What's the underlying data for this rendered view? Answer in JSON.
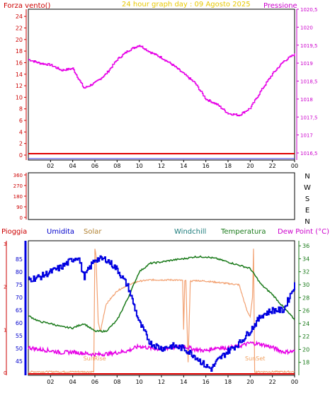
{
  "header": {
    "left_label": "Forza vento()",
    "title": "24 hour graph day : 09 Agosto 2025",
    "right_label": "Pressione"
  },
  "middle_panel": {
    "directions": [
      "N",
      "W",
      "S",
      "E",
      "N"
    ],
    "degree_ticks": [
      "360",
      "270",
      "180",
      "90",
      "0"
    ]
  },
  "bottom_header": {
    "pioggia": "Pioggia",
    "umidita": "Umidita",
    "solar": "Solar",
    "windchill": "Windchill",
    "temperatura": "Temperatura",
    "dew_point": "Dew Point (°C)"
  },
  "annotations": {
    "sunrise": "SunRise",
    "sunset": "SunSet"
  },
  "colors": {
    "pressure": "#e600e6",
    "humidity": "#0000e0",
    "temperature": "#1a7a1a",
    "solar": "#f2a070",
    "dew_point": "#e600e6",
    "rain": "#e00000",
    "wind_baseline": "#e00000",
    "panel_frame": "#000000",
    "left_axis_text": "#cc0000",
    "right_axis_text": "#cc00cc",
    "title_text": "#e8c800"
  },
  "chart_data": [
    {
      "type": "line",
      "panel": "top",
      "x_ticks": [
        "02",
        "04",
        "06",
        "08",
        "10",
        "12",
        "14",
        "16",
        "18",
        "20",
        "22",
        "00"
      ],
      "left_axis": {
        "label": "Forza vento()",
        "range": [
          0,
          25
        ],
        "ticks": [
          "0",
          "2",
          "4",
          "6",
          "8",
          "10",
          "12",
          "14",
          "16",
          "18",
          "20",
          "22",
          "24"
        ]
      },
      "right_axis": {
        "label": "Pressione",
        "range": [
          1016.5,
          1020.5
        ],
        "ticks": [
          "1016,5",
          "1017",
          "1017,5",
          "1018",
          "1018,5",
          "1019",
          "1019,5",
          "1020",
          "1020,5"
        ]
      },
      "series": [
        {
          "name": "Pressione",
          "axis": "right",
          "x": [
            0,
            1,
            2,
            3,
            4,
            5,
            6,
            7,
            8,
            9,
            10,
            11,
            12,
            13,
            14,
            15,
            16,
            17,
            18,
            19,
            20,
            21,
            22,
            23,
            24
          ],
          "y": [
            1019.1,
            1019.0,
            1018.95,
            1018.8,
            1018.85,
            1018.3,
            1018.45,
            1018.7,
            1019.1,
            1019.35,
            1019.5,
            1019.3,
            1019.15,
            1018.95,
            1018.7,
            1018.45,
            1018.0,
            1017.85,
            1017.6,
            1017.55,
            1017.75,
            1018.25,
            1018.7,
            1019.05,
            1019.25
          ]
        },
        {
          "name": "Forza vento()",
          "axis": "left",
          "x": [
            0,
            24
          ],
          "y": [
            0,
            0
          ]
        }
      ]
    },
    {
      "type": "line",
      "panel": "middle",
      "y_ticks": [
        "360",
        "270",
        "180",
        "90",
        "0"
      ],
      "y_range": [
        0,
        360
      ],
      "series": []
    },
    {
      "type": "line",
      "panel": "bottom",
      "x_ticks": [
        "02",
        "04",
        "06",
        "08",
        "10",
        "12",
        "14",
        "16",
        "18",
        "20",
        "22",
        "00"
      ],
      "left_axis_rain": {
        "label": "Pioggia",
        "ticks": [
          "3",
          "2",
          "1",
          "0"
        ]
      },
      "left_axis_humidity": {
        "label": "Umidita",
        "range": [
          40,
          90
        ],
        "ticks": [
          "45",
          "50",
          "55",
          "60",
          "65",
          "70",
          "75",
          "80",
          "85"
        ]
      },
      "right_axis": {
        "label": "Dew Point (°C)",
        "range": [
          16,
          37
        ],
        "ticks": [
          "18",
          "20",
          "22",
          "24",
          "26",
          "28",
          "30",
          "32",
          "34",
          "36"
        ]
      },
      "series": [
        {
          "name": "Umidita",
          "axis": "humidity",
          "x": [
            0,
            1,
            2,
            3,
            4,
            4.5,
            5,
            6,
            7,
            8,
            9,
            10,
            11,
            12,
            13,
            14,
            15,
            16,
            16.5,
            17,
            18,
            19,
            20,
            21,
            22,
            23,
            24
          ],
          "y": [
            77,
            78,
            80,
            82,
            85,
            86,
            78,
            85,
            85,
            81,
            74,
            60,
            52,
            50,
            51,
            50,
            47,
            43,
            42,
            45,
            49,
            52,
            57,
            63,
            65,
            65,
            75
          ]
        },
        {
          "name": "Temperatura",
          "axis": "right",
          "x": [
            0,
            1,
            2,
            3,
            4,
            5,
            6,
            7,
            8,
            9,
            10,
            11,
            12,
            13,
            14,
            15,
            16,
            17,
            18,
            19,
            20,
            21,
            22,
            23,
            24
          ],
          "y": [
            25.2,
            24.3,
            24.0,
            23.5,
            23.3,
            24.0,
            22.8,
            22.8,
            24.5,
            28.0,
            32.0,
            33.3,
            33.5,
            33.8,
            34.0,
            34.3,
            34.3,
            34.0,
            33.5,
            33.0,
            32.5,
            30.0,
            28.5,
            26.5,
            24.6
          ]
        },
        {
          "name": "Dew Point (°C)",
          "axis": "right",
          "x": [
            0,
            1,
            2,
            3,
            4,
            5,
            6,
            7,
            8,
            9,
            10,
            11,
            12,
            13,
            14,
            15,
            16,
            17,
            18,
            19,
            20,
            21,
            22,
            23,
            24
          ],
          "y": [
            20.3,
            20.0,
            19.8,
            19.5,
            19.6,
            19.4,
            19.2,
            19.3,
            19.5,
            19.8,
            20.5,
            20.2,
            20.0,
            20.3,
            20.5,
            20.0,
            19.8,
            20.3,
            20.2,
            20.5,
            21.0,
            20.8,
            20.3,
            19.6,
            19.7
          ]
        },
        {
          "name": "Solar",
          "axis": "solar",
          "x": [
            0,
            5.9,
            6.0,
            6.1,
            6.3,
            6.5,
            7.0,
            8.0,
            9.0,
            10.0,
            11.0,
            12.0,
            13.0,
            13.9,
            14.0,
            14.1,
            14.2,
            14.4,
            14.6,
            14.7,
            14.8,
            15.0,
            16.0,
            17.0,
            18.0,
            19.0,
            19.7,
            20.0,
            20.2,
            20.3,
            20.4,
            24
          ],
          "y": [
            0,
            0,
            100,
            95,
            40,
            33,
            55,
            66,
            71,
            74,
            75,
            75,
            75,
            74.5,
            35,
            74,
            74,
            8,
            74,
            74,
            74,
            74.5,
            74,
            73,
            72,
            71,
            50,
            45,
            60,
            100,
            0,
            0
          ]
        },
        {
          "name": "Pioggia",
          "axis": "rain",
          "x": [
            0,
            24
          ],
          "y": [
            0,
            0
          ]
        }
      ],
      "sunrise_hour": 6.1,
      "sunset_hour": 20.3
    }
  ]
}
